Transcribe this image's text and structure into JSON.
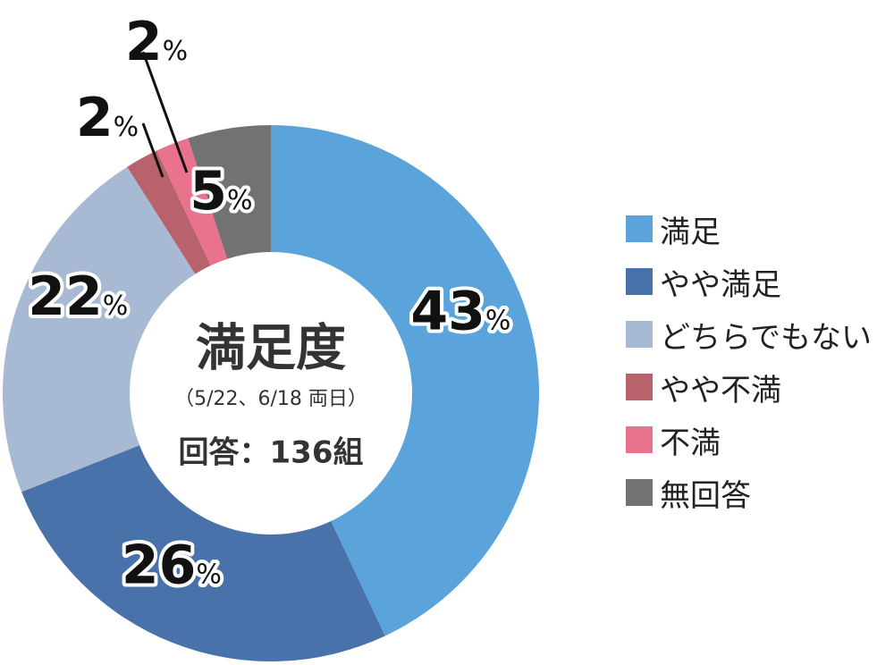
{
  "chart_data": {
    "type": "pie",
    "title": "満足度",
    "subtitle": "（5/22、6/18 両日）",
    "respondents": "回答：136組",
    "unit": "%",
    "categories": [
      "満足",
      "やや満足",
      "どちらでもない",
      "やや不満",
      "不満",
      "無回答"
    ],
    "values": [
      43,
      26,
      22,
      2,
      2,
      5
    ],
    "value_labels": [
      "43",
      "26",
      "22",
      "2",
      "2",
      "5"
    ],
    "colors": [
      "#5ba3db",
      "#4a72aa",
      "#a8b9d3",
      "#b8626b",
      "#e9738c",
      "#727272"
    ],
    "legend_position": "right",
    "donut": true
  }
}
